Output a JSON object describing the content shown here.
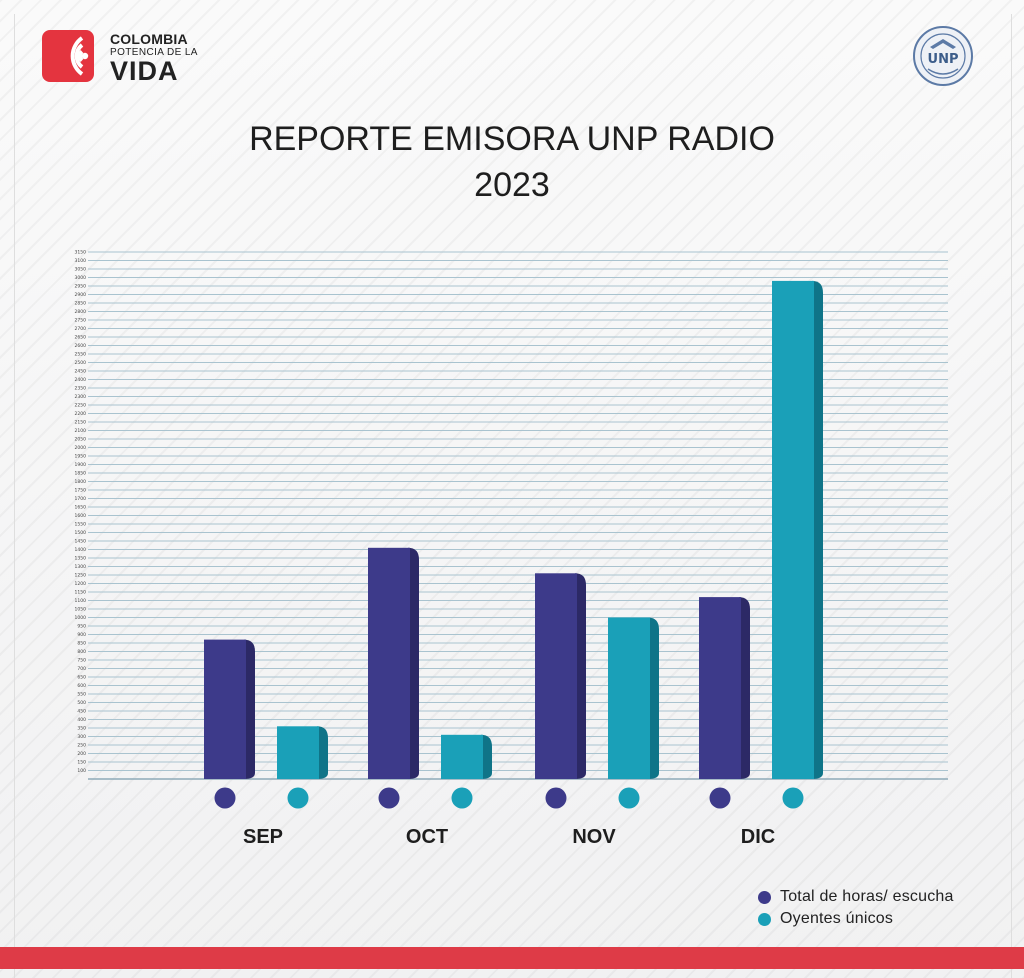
{
  "header": {
    "logo_left": {
      "line1": "COLOMBIA",
      "line2": "POTENCIA DE LA",
      "line3": "VIDA"
    },
    "logo_right": {
      "text": "UNP"
    }
  },
  "chart_data": {
    "type": "bar",
    "title": "REPORTE EMISORA UNP RADIO",
    "subtitle": "2023",
    "categories": [
      "SEP",
      "OCT",
      "NOV",
      "DIC"
    ],
    "series": [
      {
        "name": "Total de horas/ escucha",
        "color": "#3d3a8a",
        "values": [
          870,
          1410,
          1260,
          1120
        ]
      },
      {
        "name": "Oyentes únicos",
        "color": "#1aa0b8",
        "values": [
          360,
          310,
          1000,
          2980
        ]
      }
    ],
    "ylim": [
      50,
      3150
    ],
    "yticks": [
      100,
      150,
      200,
      250,
      300,
      350,
      400,
      450,
      500,
      550,
      600,
      650,
      700,
      750,
      800,
      850,
      900,
      950,
      1000,
      1050,
      1100,
      1150,
      1200,
      1250,
      1300,
      1350,
      1400,
      1450,
      1500,
      1550,
      1600,
      1650,
      1700,
      1750,
      1800,
      1850,
      1900,
      1950,
      2000,
      2050,
      2100,
      2150,
      2200,
      2250,
      2300,
      2350,
      2400,
      2450,
      2500,
      2550,
      2600,
      2650,
      2700,
      2750,
      2800,
      2850,
      2900,
      2950,
      3000,
      3050,
      3100,
      3150
    ],
    "xlabel": "",
    "ylabel": "",
    "grid": true,
    "legend": "bottom-right"
  }
}
